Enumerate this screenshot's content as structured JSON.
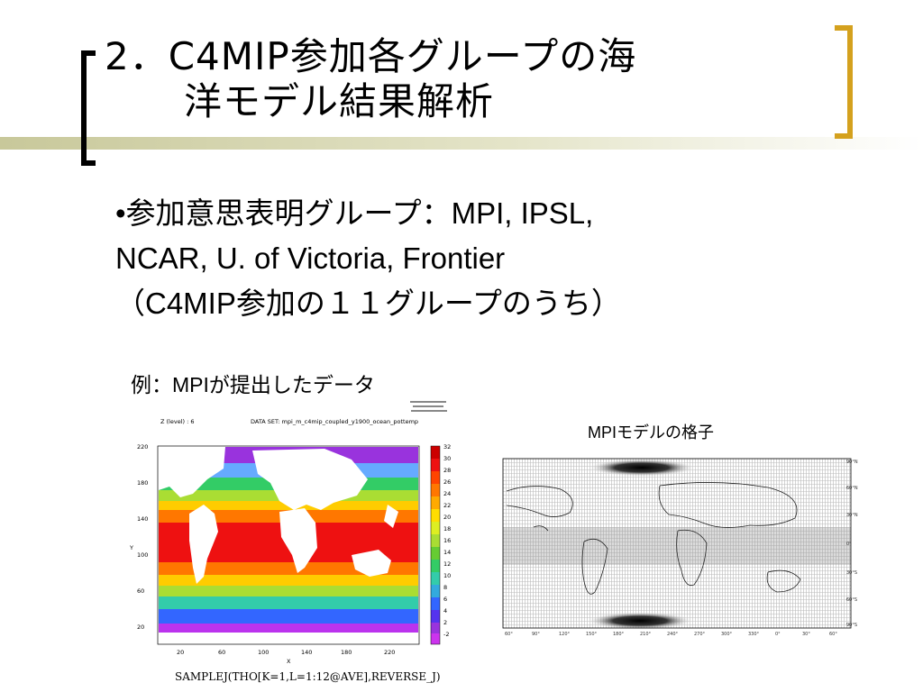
{
  "slide": {
    "title_line1": "2．C4MIP参加各グループの海",
    "title_line2": "洋モデル結果解析",
    "bullet_line1": "•参加意思表明グループ：MPI, IPSL,",
    "bullet_line2": "NCAR, U. of Victoria, Frontier",
    "bullet_line3": "（C4MIP参加の１１グループのうち）",
    "example_caption": "例：MPIが提出したデータ",
    "grid_caption": "MPIモデルの格子",
    "colors": {
      "bracket_left": "#000000",
      "bracket_right": "#d4a11e",
      "deco_bar": "#c8c89a"
    }
  },
  "left_map": {
    "header_left": "Z (level) : 6",
    "header_mid": "DATA SET: mpi_m_c4mip_coupled_y1900_ocean_pottemp",
    "y_ticks": [
      "220",
      "180",
      "140",
      "100",
      "60",
      "20"
    ],
    "x_ticks": [
      "20",
      "60",
      "100",
      "140",
      "180",
      "220"
    ],
    "x_label": "X",
    "y_label": "Y",
    "colorbar_labels": [
      "32",
      "30",
      "28",
      "26",
      "24",
      "22",
      "20",
      "18",
      "16",
      "14",
      "12",
      "10",
      "8",
      "6",
      "4",
      "2",
      "-2"
    ],
    "command": "SAMPLEJ(THO[K=1,L=1:12@AVE],REVERSE_J)"
  },
  "right_map": {
    "x_ticks": [
      "60°",
      "90°",
      "120°",
      "150°",
      "180°",
      "210°",
      "240°",
      "270°",
      "300°",
      "330°",
      "0°",
      "30°",
      "60°"
    ],
    "y_ticks": [
      "90°N",
      "60°N",
      "30°N",
      "0°",
      "30°S",
      "60°S",
      "90°S"
    ]
  }
}
